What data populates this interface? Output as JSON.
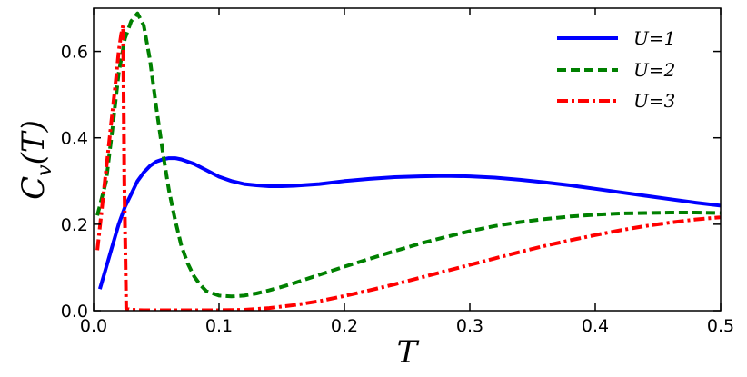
{
  "chart_data": {
    "type": "line",
    "xlabel": "T",
    "ylabel_main": "C",
    "ylabel_sub": "v",
    "ylabel_arg": "(T)",
    "xlim": [
      0.0,
      0.5
    ],
    "ylim": [
      0.0,
      0.7
    ],
    "xticks": [
      0.0,
      0.1,
      0.2,
      0.3,
      0.4,
      0.5
    ],
    "xtick_labels": [
      "0.0",
      "0.1",
      "0.2",
      "0.3",
      "0.4",
      "0.5"
    ],
    "yticks": [
      0.0,
      0.2,
      0.4,
      0.6
    ],
    "ytick_labels": [
      "0.0",
      "0.2",
      "0.4",
      "0.6"
    ],
    "grid": false,
    "legend_position": "top-right",
    "series": [
      {
        "name": "U=1",
        "color": "#0000ff",
        "style": "solid",
        "x": [
          0.005,
          0.01,
          0.015,
          0.02,
          0.025,
          0.03,
          0.035,
          0.04,
          0.045,
          0.05,
          0.055,
          0.06,
          0.065,
          0.07,
          0.08,
          0.09,
          0.1,
          0.11,
          0.12,
          0.13,
          0.14,
          0.15,
          0.16,
          0.18,
          0.2,
          0.22,
          0.24,
          0.26,
          0.28,
          0.3,
          0.32,
          0.34,
          0.36,
          0.38,
          0.4,
          0.42,
          0.44,
          0.46,
          0.48,
          0.5
        ],
        "y": [
          0.05,
          0.1,
          0.15,
          0.2,
          0.24,
          0.27,
          0.3,
          0.32,
          0.335,
          0.345,
          0.35,
          0.353,
          0.353,
          0.35,
          0.34,
          0.325,
          0.31,
          0.3,
          0.293,
          0.29,
          0.288,
          0.288,
          0.289,
          0.293,
          0.3,
          0.305,
          0.309,
          0.311,
          0.312,
          0.311,
          0.308,
          0.303,
          0.297,
          0.29,
          0.282,
          0.274,
          0.266,
          0.258,
          0.25,
          0.243
        ]
      },
      {
        "name": "U=2",
        "color": "#008000",
        "style": "dashed",
        "x": [
          0.003,
          0.01,
          0.015,
          0.02,
          0.025,
          0.03,
          0.035,
          0.04,
          0.045,
          0.05,
          0.055,
          0.06,
          0.065,
          0.07,
          0.075,
          0.08,
          0.085,
          0.09,
          0.1,
          0.11,
          0.12,
          0.13,
          0.14,
          0.15,
          0.16,
          0.18,
          0.2,
          0.22,
          0.24,
          0.26,
          0.28,
          0.3,
          0.32,
          0.34,
          0.36,
          0.38,
          0.4,
          0.42,
          0.44,
          0.46,
          0.48,
          0.5
        ],
        "y": [
          0.22,
          0.3,
          0.42,
          0.55,
          0.63,
          0.67,
          0.688,
          0.66,
          0.58,
          0.47,
          0.37,
          0.28,
          0.21,
          0.15,
          0.11,
          0.08,
          0.06,
          0.045,
          0.035,
          0.033,
          0.035,
          0.04,
          0.047,
          0.055,
          0.064,
          0.083,
          0.102,
          0.12,
          0.138,
          0.155,
          0.17,
          0.184,
          0.196,
          0.205,
          0.212,
          0.218,
          0.222,
          0.225,
          0.226,
          0.227,
          0.227,
          0.226
        ]
      },
      {
        "name": "U=3",
        "color": "#ff0000",
        "style": "dashdot",
        "x": [
          0.003,
          0.006,
          0.009,
          0.012,
          0.015,
          0.018,
          0.02,
          0.022,
          0.0235,
          0.0245,
          0.026,
          0.03,
          0.04,
          0.06,
          0.08,
          0.1,
          0.12,
          0.14,
          0.16,
          0.18,
          0.2,
          0.22,
          0.24,
          0.26,
          0.28,
          0.3,
          0.32,
          0.34,
          0.36,
          0.38,
          0.4,
          0.42,
          0.44,
          0.46,
          0.48,
          0.5
        ],
        "y": [
          0.14,
          0.22,
          0.3,
          0.38,
          0.46,
          0.54,
          0.6,
          0.64,
          0.66,
          0.3,
          0.005,
          0.002,
          0.001,
          0.001,
          0.001,
          0.001,
          0.002,
          0.006,
          0.013,
          0.022,
          0.034,
          0.047,
          0.061,
          0.076,
          0.091,
          0.106,
          0.121,
          0.136,
          0.15,
          0.163,
          0.175,
          0.186,
          0.196,
          0.204,
          0.211,
          0.216
        ]
      }
    ]
  }
}
